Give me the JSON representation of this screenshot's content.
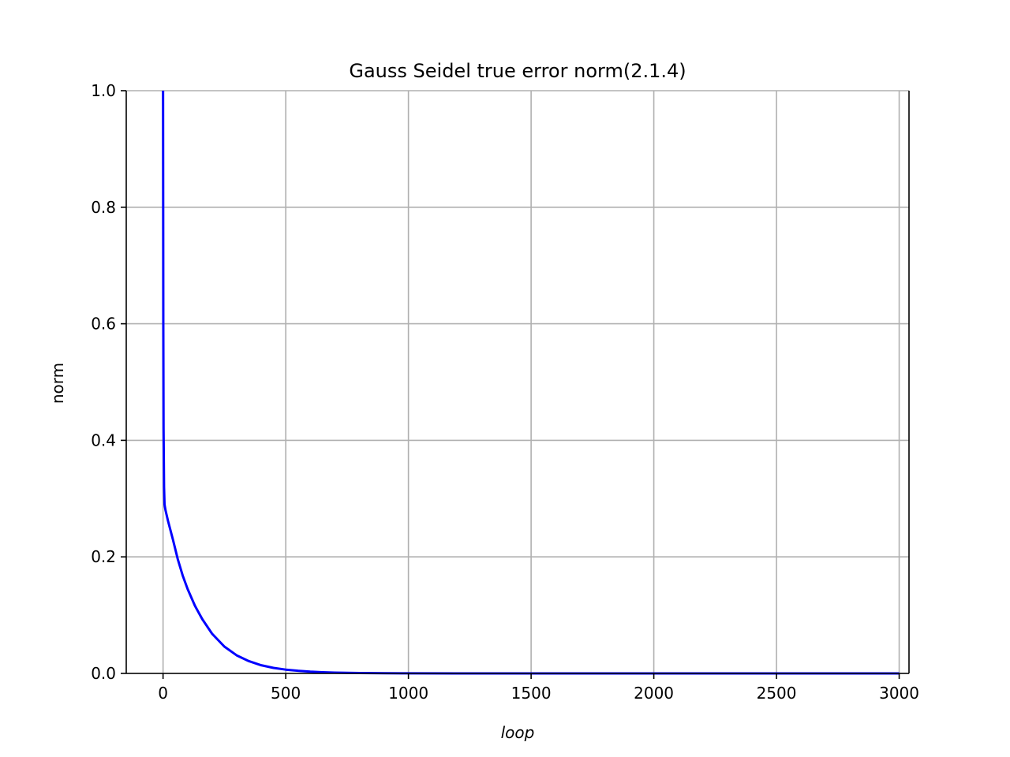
{
  "chart_data": {
    "type": "line",
    "title": "Gauss Seidel true error norm(2.1.4)",
    "xlabel": "loop",
    "ylabel": "norm",
    "xlim": [
      -150,
      3040
    ],
    "ylim": [
      0.0,
      1.0
    ],
    "xticks": [
      0,
      500,
      1000,
      1500,
      2000,
      2500,
      3000
    ],
    "xtick_labels": [
      "0",
      "500",
      "1000",
      "1500",
      "2000",
      "2500",
      "3000"
    ],
    "yticks": [
      0.0,
      0.2,
      0.4,
      0.6,
      0.8,
      1.0
    ],
    "ytick_labels": [
      "0.0",
      "0.2",
      "0.4",
      "0.6",
      "0.8",
      "1.0"
    ],
    "grid": true,
    "series": [
      {
        "color": "#0000ff",
        "x": [
          0,
          1,
          2,
          4,
          6,
          10,
          20,
          40,
          60,
          80,
          100,
          130,
          160,
          200,
          250,
          300,
          350,
          400,
          450,
          500,
          550,
          600,
          650,
          700,
          800,
          900,
          1000,
          1200,
          1500,
          2000,
          2500,
          3000
        ],
        "y": [
          1.0,
          0.6,
          0.42,
          0.32,
          0.29,
          0.28,
          0.262,
          0.23,
          0.196,
          0.168,
          0.145,
          0.116,
          0.093,
          0.068,
          0.046,
          0.031,
          0.021,
          0.014,
          0.0095,
          0.0065,
          0.0045,
          0.003,
          0.002,
          0.0014,
          0.0007,
          0.0003,
          0.00015,
          3e-05,
          0.0,
          0.0,
          0.0,
          0.0
        ]
      }
    ]
  }
}
